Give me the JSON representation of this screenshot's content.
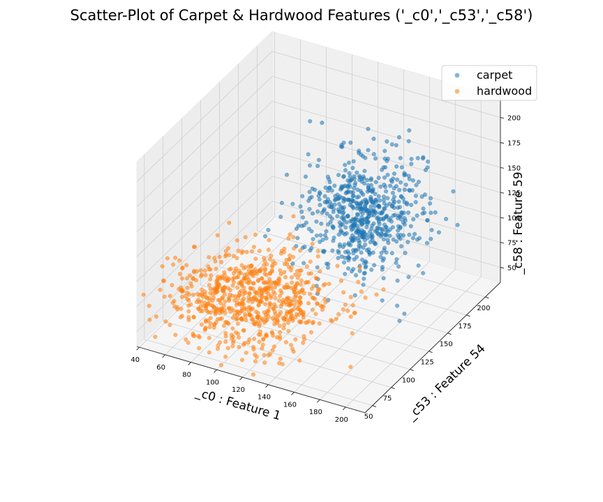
{
  "chart_data": {
    "type": "scatter",
    "projection": "3d",
    "title": "Scatter-Plot of Carpet & Hardwood Features ('_c0','_c53','_c58')",
    "xlabel": "_c0 : Feature 1",
    "ylabel": "_c53 : Feature 54",
    "zlabel": "_c58 : Feature 59",
    "xlim": [
      38,
      215
    ],
    "ylim": [
      40,
      220
    ],
    "zlim": [
      35,
      220
    ],
    "xticks": [
      "40",
      "60",
      "80",
      "100",
      "120",
      "140",
      "160",
      "180",
      "200"
    ],
    "yticks": [
      "50",
      "75",
      "100",
      "125",
      "150",
      "175",
      "200"
    ],
    "zticks": [
      "50",
      "75",
      "100",
      "125",
      "150",
      "175",
      "200"
    ],
    "grid": true,
    "legend_position": "top-right",
    "series": [
      {
        "name": "carpet",
        "color": "#1f77b4",
        "alpha": 0.55,
        "cluster_center": [
          150,
          150,
          130
        ],
        "cluster_spread": [
          20,
          22,
          25
        ],
        "count": 650
      },
      {
        "name": "hardwood",
        "color": "#ff7f0e",
        "alpha": 0.55,
        "cluster_center": [
          95,
          95,
          65
        ],
        "cluster_spread": [
          28,
          26,
          15
        ],
        "count": 750
      }
    ]
  }
}
